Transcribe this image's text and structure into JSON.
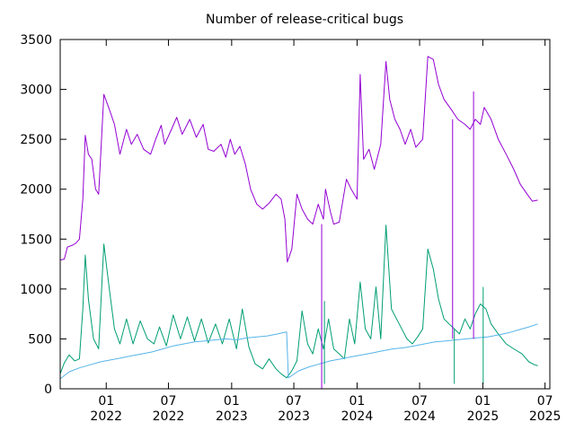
{
  "chart_data": {
    "type": "line",
    "title": "Number of release-critical bugs",
    "xlabel": "",
    "ylabel": "",
    "xlim": [
      "2021-08-20",
      "2025-07-15"
    ],
    "ylim": [
      0,
      3500
    ],
    "y_ticks": [
      0,
      500,
      1000,
      1500,
      2000,
      2500,
      3000,
      3500
    ],
    "x_ticks": [
      {
        "date": "2022-01-01",
        "month": "01",
        "year": "2022"
      },
      {
        "date": "2022-07-01",
        "month": "07",
        "year": "2022"
      },
      {
        "date": "2023-01-01",
        "month": "01",
        "year": "2023"
      },
      {
        "date": "2023-07-01",
        "month": "07",
        "year": "2023"
      },
      {
        "date": "2024-01-01",
        "month": "01",
        "year": "2024"
      },
      {
        "date": "2024-07-01",
        "month": "07",
        "year": "2024"
      },
      {
        "date": "2025-01-01",
        "month": "01",
        "year": "2025"
      },
      {
        "date": "2025-07-01",
        "month": "07",
        "year": "2025"
      }
    ],
    "grid": false,
    "legend": "none",
    "series": [
      {
        "color": "#9400d3",
        "points": [
          [
            "2021-08-20",
            1290
          ],
          [
            "2021-09-01",
            1300
          ],
          [
            "2021-09-10",
            1420
          ],
          [
            "2021-09-25",
            1440
          ],
          [
            "2021-10-05",
            1460
          ],
          [
            "2021-10-15",
            1500
          ],
          [
            "2021-10-25",
            1900
          ],
          [
            "2021-11-01",
            2540
          ],
          [
            "2021-11-10",
            2350
          ],
          [
            "2021-11-20",
            2300
          ],
          [
            "2021-12-01",
            2000
          ],
          [
            "2021-12-10",
            1950
          ],
          [
            "2021-12-25",
            2950
          ],
          [
            "2022-01-10",
            2800
          ],
          [
            "2022-01-25",
            2650
          ],
          [
            "2022-02-10",
            2350
          ],
          [
            "2022-03-01",
            2600
          ],
          [
            "2022-03-15",
            2450
          ],
          [
            "2022-04-01",
            2550
          ],
          [
            "2022-04-20",
            2400
          ],
          [
            "2022-05-10",
            2350
          ],
          [
            "2022-05-25",
            2500
          ],
          [
            "2022-06-10",
            2640
          ],
          [
            "2022-06-20",
            2450
          ],
          [
            "2022-07-10",
            2600
          ],
          [
            "2022-07-25",
            2720
          ],
          [
            "2022-08-10",
            2550
          ],
          [
            "2022-09-01",
            2700
          ],
          [
            "2022-09-20",
            2520
          ],
          [
            "2022-10-10",
            2650
          ],
          [
            "2022-10-25",
            2400
          ],
          [
            "2022-11-10",
            2380
          ],
          [
            "2022-12-01",
            2450
          ],
          [
            "2022-12-15",
            2320
          ],
          [
            "2022-12-28",
            2500
          ],
          [
            "2023-01-10",
            2350
          ],
          [
            "2023-01-25",
            2430
          ],
          [
            "2023-02-10",
            2250
          ],
          [
            "2023-02-25",
            2000
          ],
          [
            "2023-03-15",
            1850
          ],
          [
            "2023-04-01",
            1800
          ],
          [
            "2023-04-20",
            1860
          ],
          [
            "2023-05-10",
            1950
          ],
          [
            "2023-05-25",
            1900
          ],
          [
            "2023-06-05",
            1700
          ],
          [
            "2023-06-12",
            1270
          ],
          [
            "2023-06-25",
            1400
          ],
          [
            "2023-07-10",
            1950
          ],
          [
            "2023-07-25",
            1800
          ],
          [
            "2023-08-10",
            1700
          ],
          [
            "2023-08-25",
            1650
          ],
          [
            "2023-09-10",
            1850
          ],
          [
            "2023-09-25",
            1700
          ],
          [
            "2023-10-01",
            2000
          ],
          [
            "2023-10-15",
            1780
          ],
          [
            "2023-10-25",
            1650
          ],
          [
            "2023-11-10",
            1670
          ],
          [
            "2023-12-01",
            2100
          ],
          [
            "2023-12-15",
            2000
          ],
          [
            "2024-01-01",
            1900
          ],
          [
            "2024-01-10",
            3150
          ],
          [
            "2024-01-20",
            2300
          ],
          [
            "2024-02-05",
            2400
          ],
          [
            "2024-02-20",
            2200
          ],
          [
            "2024-03-10",
            2450
          ],
          [
            "2024-03-25",
            3280
          ],
          [
            "2024-04-05",
            2900
          ],
          [
            "2024-04-20",
            2700
          ],
          [
            "2024-05-05",
            2600
          ],
          [
            "2024-05-20",
            2450
          ],
          [
            "2024-06-05",
            2600
          ],
          [
            "2024-06-20",
            2420
          ],
          [
            "2024-07-10",
            2500
          ],
          [
            "2024-07-25",
            3330
          ],
          [
            "2024-08-10",
            3300
          ],
          [
            "2024-08-25",
            3050
          ],
          [
            "2024-09-10",
            2900
          ],
          [
            "2024-10-01",
            2800
          ],
          [
            "2024-10-20",
            2700
          ],
          [
            "2024-11-10",
            2650
          ],
          [
            "2024-11-25",
            2600
          ],
          [
            "2024-12-10",
            2700
          ],
          [
            "2024-12-25",
            2650
          ],
          [
            "2025-01-05",
            2820
          ],
          [
            "2025-01-25",
            2700
          ],
          [
            "2025-02-15",
            2500
          ],
          [
            "2025-03-10",
            2350
          ],
          [
            "2025-04-01",
            2200
          ],
          [
            "2025-04-20",
            2050
          ],
          [
            "2025-05-10",
            1950
          ],
          [
            "2025-05-25",
            1880
          ],
          [
            "2025-06-10",
            1890
          ]
        ]
      },
      {
        "color": "#009e73",
        "points": [
          [
            "2021-08-20",
            150
          ],
          [
            "2021-09-01",
            260
          ],
          [
            "2021-09-15",
            340
          ],
          [
            "2021-10-01",
            280
          ],
          [
            "2021-10-15",
            300
          ],
          [
            "2021-10-25",
            800
          ],
          [
            "2021-11-01",
            1340
          ],
          [
            "2021-11-10",
            900
          ],
          [
            "2021-11-25",
            500
          ],
          [
            "2021-12-10",
            400
          ],
          [
            "2021-12-25",
            1450
          ],
          [
            "2022-01-10",
            1000
          ],
          [
            "2022-01-25",
            600
          ],
          [
            "2022-02-10",
            450
          ],
          [
            "2022-03-01",
            700
          ],
          [
            "2022-03-20",
            450
          ],
          [
            "2022-04-10",
            680
          ],
          [
            "2022-05-01",
            500
          ],
          [
            "2022-05-20",
            450
          ],
          [
            "2022-06-05",
            620
          ],
          [
            "2022-06-25",
            430
          ],
          [
            "2022-07-15",
            740
          ],
          [
            "2022-08-05",
            500
          ],
          [
            "2022-08-25",
            720
          ],
          [
            "2022-09-15",
            480
          ],
          [
            "2022-10-05",
            700
          ],
          [
            "2022-10-25",
            460
          ],
          [
            "2022-11-15",
            650
          ],
          [
            "2022-12-05",
            450
          ],
          [
            "2022-12-25",
            700
          ],
          [
            "2023-01-15",
            400
          ],
          [
            "2023-02-01",
            800
          ],
          [
            "2023-02-20",
            420
          ],
          [
            "2023-03-10",
            250
          ],
          [
            "2023-04-01",
            200
          ],
          [
            "2023-04-20",
            300
          ],
          [
            "2023-05-10",
            200
          ],
          [
            "2023-05-25",
            150
          ],
          [
            "2023-06-10",
            110
          ],
          [
            "2023-06-25",
            180
          ],
          [
            "2023-07-10",
            280
          ],
          [
            "2023-07-25",
            780
          ],
          [
            "2023-08-10",
            450
          ],
          [
            "2023-08-25",
            350
          ],
          [
            "2023-09-10",
            600
          ],
          [
            "2023-09-25",
            400
          ],
          [
            "2023-10-10",
            700
          ],
          [
            "2023-10-25",
            400
          ],
          [
            "2023-11-10",
            350
          ],
          [
            "2023-11-25",
            300
          ],
          [
            "2023-12-10",
            700
          ],
          [
            "2023-12-25",
            450
          ],
          [
            "2024-01-10",
            1070
          ],
          [
            "2024-01-25",
            600
          ],
          [
            "2024-02-10",
            500
          ],
          [
            "2024-02-25",
            1020
          ],
          [
            "2024-03-10",
            500
          ],
          [
            "2024-03-25",
            1640
          ],
          [
            "2024-04-10",
            800
          ],
          [
            "2024-04-25",
            700
          ],
          [
            "2024-05-10",
            600
          ],
          [
            "2024-05-25",
            500
          ],
          [
            "2024-06-10",
            450
          ],
          [
            "2024-06-25",
            520
          ],
          [
            "2024-07-10",
            600
          ],
          [
            "2024-07-25",
            1400
          ],
          [
            "2024-08-10",
            1200
          ],
          [
            "2024-08-25",
            900
          ],
          [
            "2024-09-10",
            700
          ],
          [
            "2024-09-25",
            650
          ],
          [
            "2024-10-10",
            600
          ],
          [
            "2024-10-25",
            550
          ],
          [
            "2024-11-10",
            700
          ],
          [
            "2024-11-25",
            600
          ],
          [
            "2024-12-10",
            750
          ],
          [
            "2024-12-25",
            850
          ],
          [
            "2025-01-10",
            800
          ],
          [
            "2025-01-25",
            650
          ],
          [
            "2025-02-15",
            550
          ],
          [
            "2025-03-10",
            450
          ],
          [
            "2025-04-01",
            400
          ],
          [
            "2025-04-25",
            350
          ],
          [
            "2025-05-15",
            270
          ],
          [
            "2025-06-01",
            240
          ],
          [
            "2025-06-10",
            230
          ]
        ]
      },
      {
        "color": "#56b4e9",
        "points": [
          [
            "2021-08-20",
            100
          ],
          [
            "2021-09-15",
            170
          ],
          [
            "2021-10-15",
            210
          ],
          [
            "2021-11-15",
            240
          ],
          [
            "2021-12-15",
            270
          ],
          [
            "2022-01-15",
            290
          ],
          [
            "2022-02-15",
            310
          ],
          [
            "2022-03-15",
            330
          ],
          [
            "2022-04-15",
            350
          ],
          [
            "2022-05-15",
            370
          ],
          [
            "2022-06-15",
            400
          ],
          [
            "2022-07-15",
            430
          ],
          [
            "2022-08-15",
            450
          ],
          [
            "2022-09-15",
            470
          ],
          [
            "2022-10-15",
            480
          ],
          [
            "2022-11-15",
            490
          ],
          [
            "2022-12-15",
            500
          ],
          [
            "2023-01-15",
            490
          ],
          [
            "2023-02-15",
            510
          ],
          [
            "2023-03-15",
            520
          ],
          [
            "2023-04-15",
            530
          ],
          [
            "2023-05-15",
            550
          ],
          [
            "2023-06-10",
            570
          ],
          [
            "2023-06-15",
            110
          ],
          [
            "2023-07-15",
            180
          ],
          [
            "2023-08-15",
            220
          ],
          [
            "2023-09-15",
            250
          ],
          [
            "2023-10-15",
            280
          ],
          [
            "2023-11-15",
            300
          ],
          [
            "2023-12-15",
            320
          ],
          [
            "2024-01-15",
            340
          ],
          [
            "2024-02-15",
            360
          ],
          [
            "2024-03-15",
            380
          ],
          [
            "2024-04-15",
            400
          ],
          [
            "2024-05-15",
            410
          ],
          [
            "2024-06-15",
            430
          ],
          [
            "2024-07-15",
            450
          ],
          [
            "2024-08-15",
            470
          ],
          [
            "2024-09-15",
            480
          ],
          [
            "2024-10-15",
            490
          ],
          [
            "2024-11-15",
            500
          ],
          [
            "2024-12-15",
            510
          ],
          [
            "2025-01-15",
            520
          ],
          [
            "2025-02-15",
            540
          ],
          [
            "2025-03-15",
            560
          ],
          [
            "2025-04-15",
            590
          ],
          [
            "2025-05-15",
            620
          ],
          [
            "2025-06-10",
            650
          ]
        ]
      }
    ],
    "spikes": [
      {
        "series": 0,
        "date": "2023-09-20",
        "low": 0,
        "high": 1650
      },
      {
        "series": 0,
        "date": "2024-10-05",
        "low": 500,
        "high": 2700
      },
      {
        "series": 0,
        "date": "2024-12-05",
        "low": 500,
        "high": 2980
      },
      {
        "series": 1,
        "date": "2023-09-28",
        "low": 50,
        "high": 880
      },
      {
        "series": 1,
        "date": "2024-10-10",
        "low": 50,
        "high": 600
      },
      {
        "series": 1,
        "date": "2025-01-02",
        "low": 50,
        "high": 1020
      }
    ]
  }
}
